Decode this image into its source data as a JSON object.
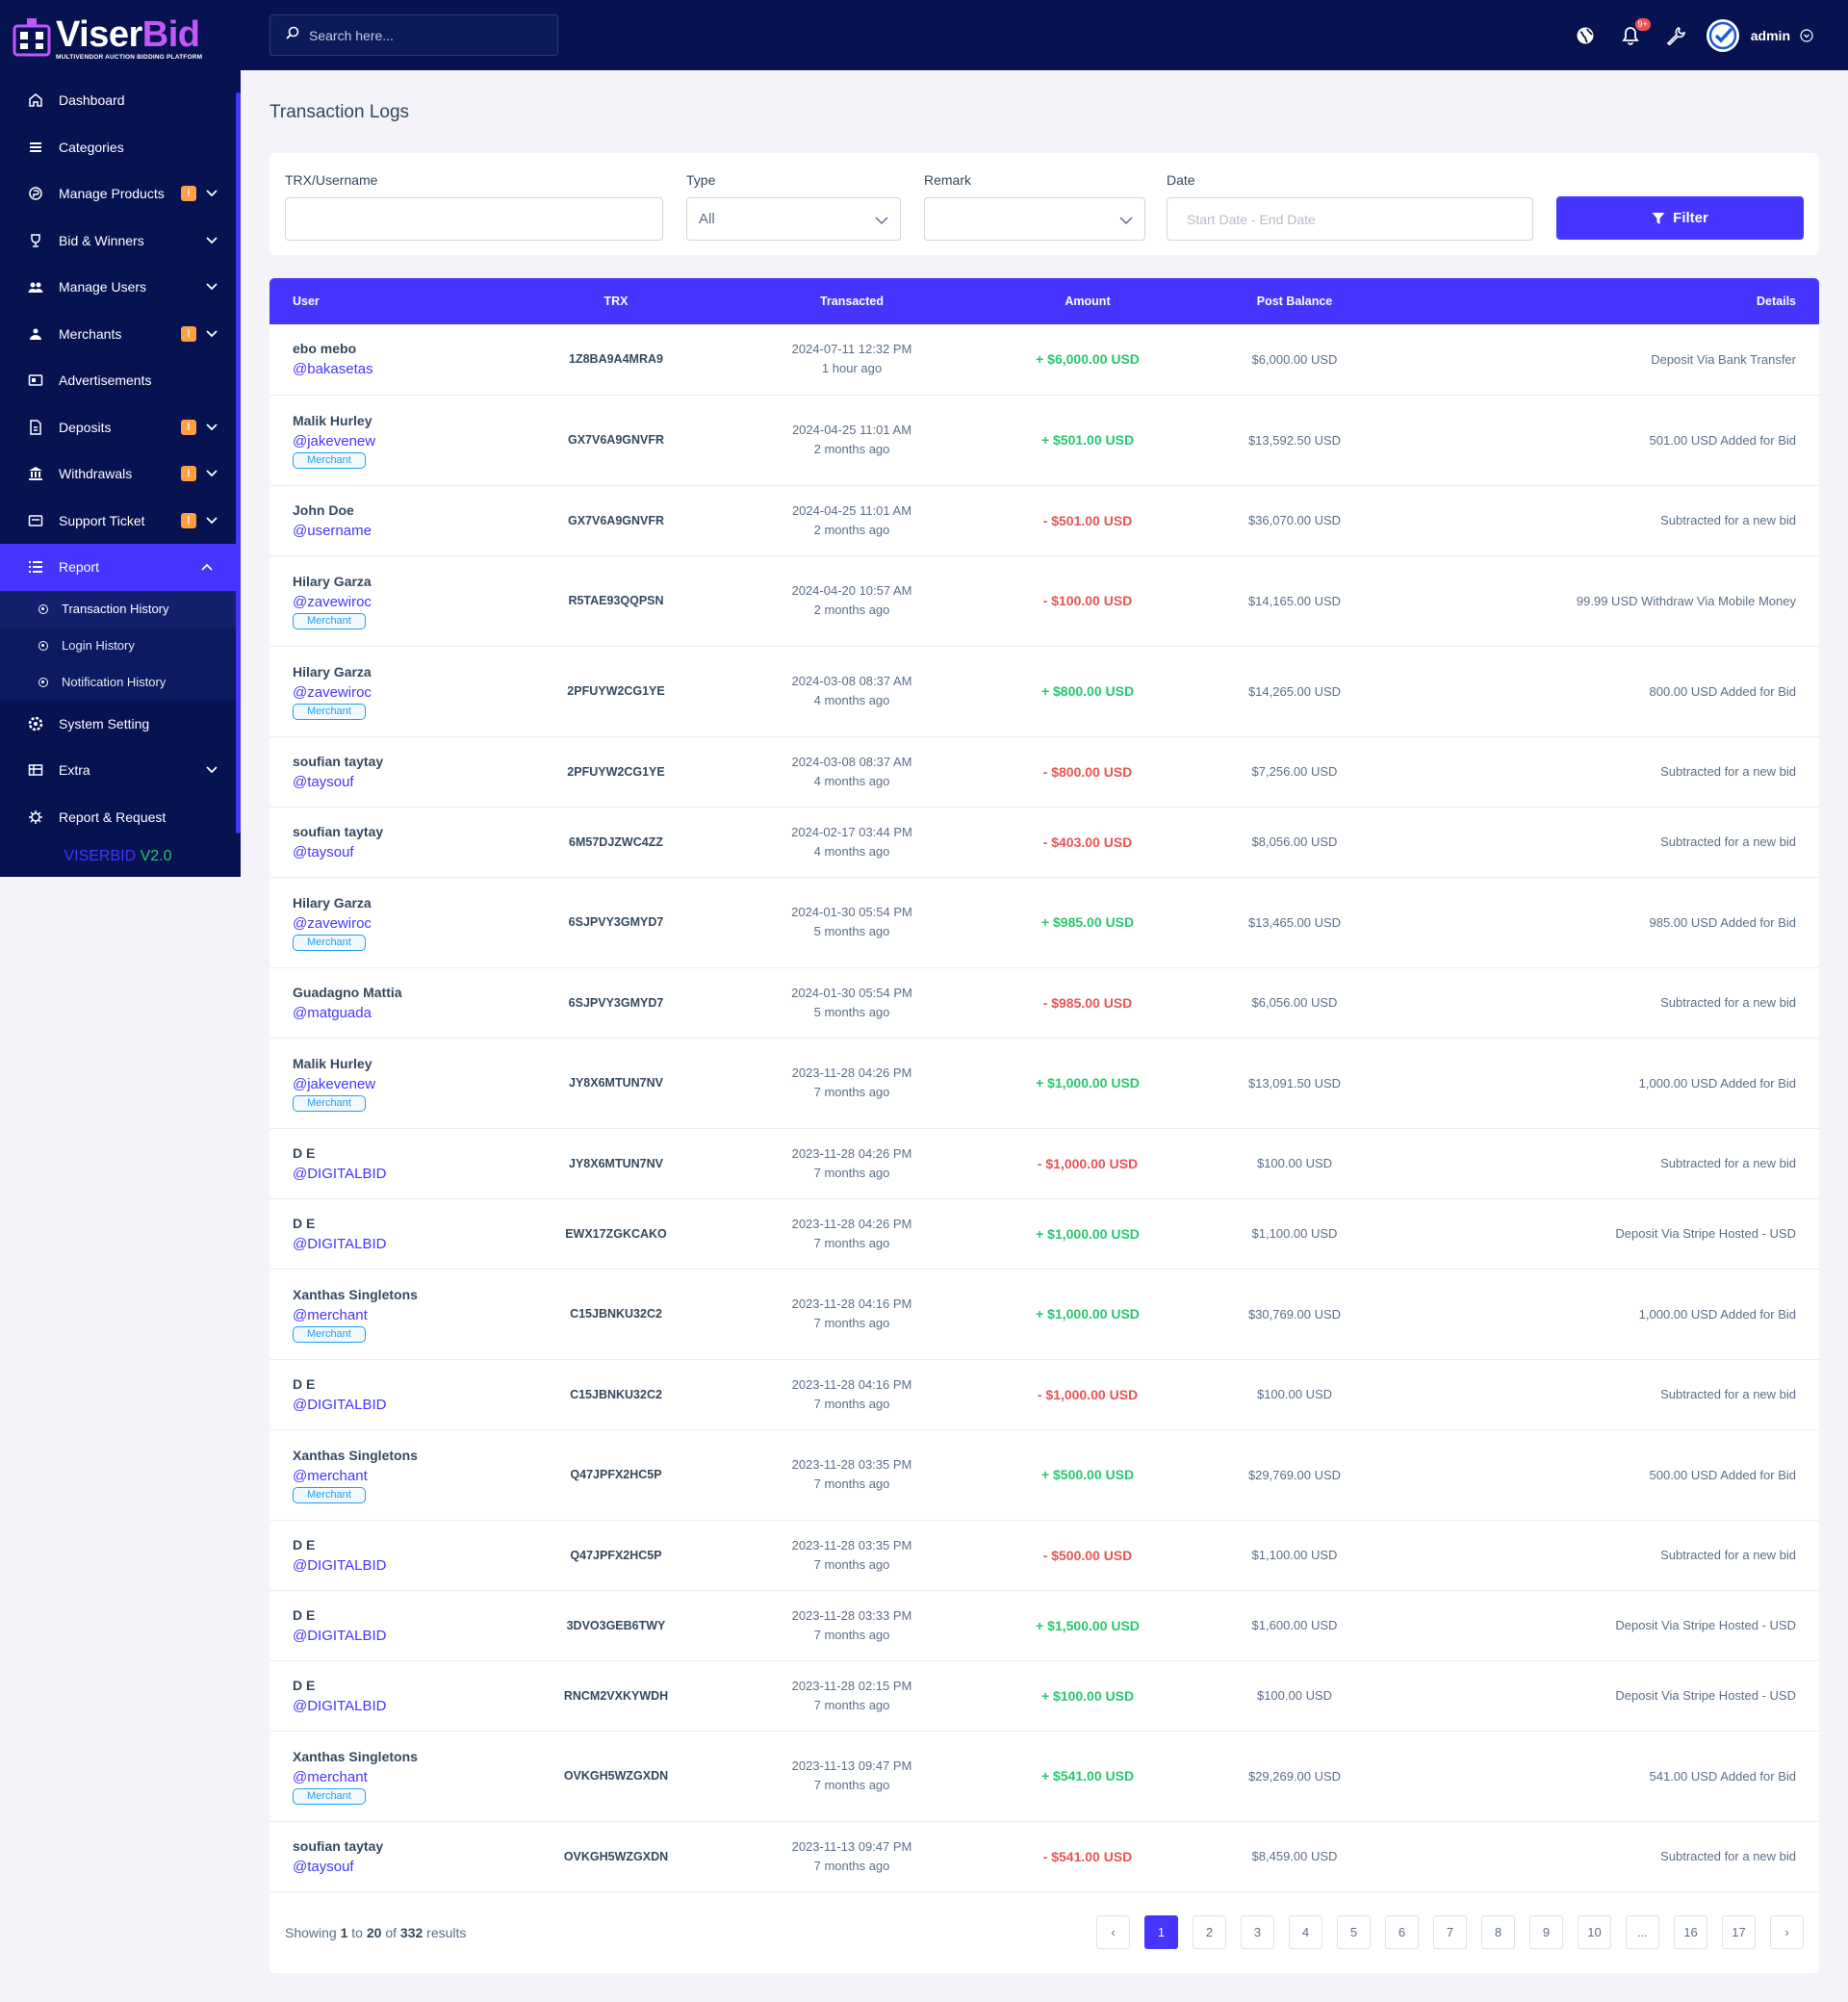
{
  "app": {
    "logo_first": "Viser",
    "logo_second": "Bid",
    "logo_subtitle": "MULTIVENDOR AUCTION BIDDING PLATFORM",
    "version_name": "VISERBID",
    "version_number": "V2.0"
  },
  "search": {
    "placeholder": "Search here..."
  },
  "topbar": {
    "admin_name": "admin",
    "notification_count": "9+"
  },
  "sidebar": {
    "items": [
      {
        "label": "Dashboard",
        "icon": "home-icon"
      },
      {
        "label": "Categories",
        "icon": "list-icon"
      },
      {
        "label": "Manage Products",
        "icon": "product-icon",
        "badge": "!"
      },
      {
        "label": "Bid & Winners",
        "icon": "trophy-icon"
      },
      {
        "label": "Manage Users",
        "icon": "users-icon"
      },
      {
        "label": "Merchants",
        "icon": "merchant-icon",
        "badge": "!"
      },
      {
        "label": "Advertisements",
        "icon": "ad-icon"
      },
      {
        "label": "Deposits",
        "icon": "deposit-icon",
        "badge": "!"
      },
      {
        "label": "Withdrawals",
        "icon": "bank-icon",
        "badge": "!"
      },
      {
        "label": "Support Ticket",
        "icon": "ticket-icon",
        "badge": "!"
      },
      {
        "label": "Report",
        "icon": "report-icon"
      },
      {
        "label": "System Setting",
        "icon": "gear-icon"
      },
      {
        "label": "Extra",
        "icon": "extra-icon"
      },
      {
        "label": "Report & Request",
        "icon": "bug-icon"
      }
    ],
    "report_sub": [
      "Transaction History",
      "Login History",
      "Notification History"
    ]
  },
  "page": {
    "title": "Transaction Logs"
  },
  "filters": {
    "trx_label": "TRX/Username",
    "type_label": "Type",
    "type_value": "All",
    "remark_label": "Remark",
    "date_label": "Date",
    "date_placeholder": "Start Date - End Date",
    "button": "Filter"
  },
  "table": {
    "headers": [
      "User",
      "TRX",
      "Transacted",
      "Amount",
      "Post Balance",
      "Details"
    ],
    "rows": [
      {
        "name": "ebo mebo",
        "handle": "@bakasetas",
        "merchant": false,
        "trx": "1Z8BA9A4MRA9",
        "date": "2024-07-11 12:32 PM",
        "ago": "1 hour ago",
        "amount": "+ $6,000.00 USD",
        "sign": "pos",
        "balance": "$6,000.00 USD",
        "details": "Deposit Via Bank Transfer"
      },
      {
        "name": "Malik Hurley",
        "handle": "@jakevenew",
        "merchant": true,
        "trx": "GX7V6A9GNVFR",
        "date": "2024-04-25 11:01 AM",
        "ago": "2 months ago",
        "amount": "+ $501.00 USD",
        "sign": "pos",
        "balance": "$13,592.50 USD",
        "details": "501.00 USD Added for Bid"
      },
      {
        "name": "John Doe",
        "handle": "@username",
        "merchant": false,
        "trx": "GX7V6A9GNVFR",
        "date": "2024-04-25 11:01 AM",
        "ago": "2 months ago",
        "amount": "- $501.00 USD",
        "sign": "neg",
        "balance": "$36,070.00 USD",
        "details": "Subtracted for a new bid"
      },
      {
        "name": "Hilary Garza",
        "handle": "@zavewiroc",
        "merchant": true,
        "trx": "R5TAE93QQPSN",
        "date": "2024-04-20 10:57 AM",
        "ago": "2 months ago",
        "amount": "- $100.00 USD",
        "sign": "neg",
        "balance": "$14,165.00 USD",
        "details": "99.99 USD Withdraw Via Mobile Money"
      },
      {
        "name": "Hilary Garza",
        "handle": "@zavewiroc",
        "merchant": true,
        "trx": "2PFUYW2CG1YE",
        "date": "2024-03-08 08:37 AM",
        "ago": "4 months ago",
        "amount": "+ $800.00 USD",
        "sign": "pos",
        "balance": "$14,265.00 USD",
        "details": "800.00 USD Added for Bid"
      },
      {
        "name": "soufian taytay",
        "handle": "@taysouf",
        "merchant": false,
        "trx": "2PFUYW2CG1YE",
        "date": "2024-03-08 08:37 AM",
        "ago": "4 months ago",
        "amount": "- $800.00 USD",
        "sign": "neg",
        "balance": "$7,256.00 USD",
        "details": "Subtracted for a new bid"
      },
      {
        "name": "soufian taytay",
        "handle": "@taysouf",
        "merchant": false,
        "trx": "6M57DJZWC4ZZ",
        "date": "2024-02-17 03:44 PM",
        "ago": "4 months ago",
        "amount": "- $403.00 USD",
        "sign": "neg",
        "balance": "$8,056.00 USD",
        "details": "Subtracted for a new bid"
      },
      {
        "name": "Hilary Garza",
        "handle": "@zavewiroc",
        "merchant": true,
        "trx": "6SJPVY3GMYD7",
        "date": "2024-01-30 05:54 PM",
        "ago": "5 months ago",
        "amount": "+ $985.00 USD",
        "sign": "pos",
        "balance": "$13,465.00 USD",
        "details": "985.00 USD Added for Bid"
      },
      {
        "name": "Guadagno Mattia",
        "handle": "@matguada",
        "merchant": false,
        "trx": "6SJPVY3GMYD7",
        "date": "2024-01-30 05:54 PM",
        "ago": "5 months ago",
        "amount": "- $985.00 USD",
        "sign": "neg",
        "balance": "$6,056.00 USD",
        "details": "Subtracted for a new bid"
      },
      {
        "name": "Malik Hurley",
        "handle": "@jakevenew",
        "merchant": true,
        "trx": "JY8X6MTUN7NV",
        "date": "2023-11-28 04:26 PM",
        "ago": "7 months ago",
        "amount": "+ $1,000.00 USD",
        "sign": "pos",
        "balance": "$13,091.50 USD",
        "details": "1,000.00 USD Added for Bid"
      },
      {
        "name": "D E",
        "handle": "@DIGITALBID",
        "merchant": false,
        "trx": "JY8X6MTUN7NV",
        "date": "2023-11-28 04:26 PM",
        "ago": "7 months ago",
        "amount": "- $1,000.00 USD",
        "sign": "neg",
        "balance": "$100.00 USD",
        "details": "Subtracted for a new bid"
      },
      {
        "name": "D E",
        "handle": "@DIGITALBID",
        "merchant": false,
        "trx": "EWX17ZGKCAKO",
        "date": "2023-11-28 04:26 PM",
        "ago": "7 months ago",
        "amount": "+ $1,000.00 USD",
        "sign": "pos",
        "balance": "$1,100.00 USD",
        "details": "Deposit Via Stripe Hosted - USD"
      },
      {
        "name": "Xanthas Singletons",
        "handle": "@merchant",
        "merchant": true,
        "trx": "C15JBNKU32C2",
        "date": "2023-11-28 04:16 PM",
        "ago": "7 months ago",
        "amount": "+ $1,000.00 USD",
        "sign": "pos",
        "balance": "$30,769.00 USD",
        "details": "1,000.00 USD Added for Bid"
      },
      {
        "name": "D E",
        "handle": "@DIGITALBID",
        "merchant": false,
        "trx": "C15JBNKU32C2",
        "date": "2023-11-28 04:16 PM",
        "ago": "7 months ago",
        "amount": "- $1,000.00 USD",
        "sign": "neg",
        "balance": "$100.00 USD",
        "details": "Subtracted for a new bid"
      },
      {
        "name": "Xanthas Singletons",
        "handle": "@merchant",
        "merchant": true,
        "trx": "Q47JPFX2HC5P",
        "date": "2023-11-28 03:35 PM",
        "ago": "7 months ago",
        "amount": "+ $500.00 USD",
        "sign": "pos",
        "balance": "$29,769.00 USD",
        "details": "500.00 USD Added for Bid"
      },
      {
        "name": "D E",
        "handle": "@DIGITALBID",
        "merchant": false,
        "trx": "Q47JPFX2HC5P",
        "date": "2023-11-28 03:35 PM",
        "ago": "7 months ago",
        "amount": "- $500.00 USD",
        "sign": "neg",
        "balance": "$1,100.00 USD",
        "details": "Subtracted for a new bid"
      },
      {
        "name": "D E",
        "handle": "@DIGITALBID",
        "merchant": false,
        "trx": "3DVO3GEB6TWY",
        "date": "2023-11-28 03:33 PM",
        "ago": "7 months ago",
        "amount": "+ $1,500.00 USD",
        "sign": "pos",
        "balance": "$1,600.00 USD",
        "details": "Deposit Via Stripe Hosted - USD"
      },
      {
        "name": "D E",
        "handle": "@DIGITALBID",
        "merchant": false,
        "trx": "RNCM2VXKYWDH",
        "date": "2023-11-28 02:15 PM",
        "ago": "7 months ago",
        "amount": "+ $100.00 USD",
        "sign": "pos",
        "balance": "$100.00 USD",
        "details": "Deposit Via Stripe Hosted - USD"
      },
      {
        "name": "Xanthas Singletons",
        "handle": "@merchant",
        "merchant": true,
        "trx": "OVKGH5WZGXDN",
        "date": "2023-11-13 09:47 PM",
        "ago": "7 months ago",
        "amount": "+ $541.00 USD",
        "sign": "pos",
        "balance": "$29,269.00 USD",
        "details": "541.00 USD Added for Bid"
      },
      {
        "name": "soufian taytay",
        "handle": "@taysouf",
        "merchant": false,
        "trx": "OVKGH5WZGXDN",
        "date": "2023-11-13 09:47 PM",
        "ago": "7 months ago",
        "amount": "- $541.00 USD",
        "sign": "neg",
        "balance": "$8,459.00 USD",
        "details": "Subtracted for a new bid"
      }
    ],
    "merchant_badge": "Merchant"
  },
  "pagination": {
    "showing_prefix": "Showing",
    "from": "1",
    "to_word": "to",
    "to": "20",
    "of_word": "of",
    "total": "332",
    "results_word": "results",
    "prev": "‹",
    "next": "›",
    "pages": [
      "1",
      "2",
      "3",
      "4",
      "5",
      "6",
      "7",
      "8",
      "9",
      "10",
      "...",
      "16",
      "17"
    ],
    "current": "1"
  },
  "colors": {
    "sidebar_bg": "#071251",
    "accent": "#4634ff",
    "positive": "#28c76f",
    "negative": "#ea5455",
    "badge": "#ff9f43"
  }
}
